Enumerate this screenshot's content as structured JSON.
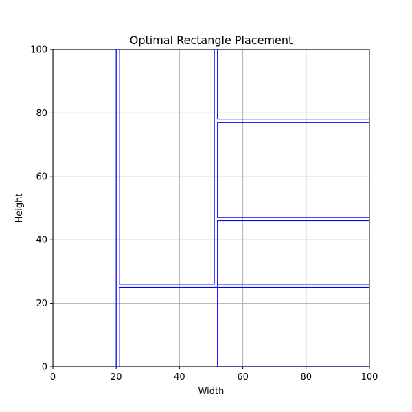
{
  "chart_data": {
    "type": "rectangles",
    "title": "Optimal Rectangle Placement",
    "xlabel": "Width",
    "ylabel": "Height",
    "xlim": [
      0,
      100
    ],
    "ylim": [
      0,
      100
    ],
    "xticks": [
      0,
      20,
      40,
      60,
      80,
      100
    ],
    "yticks": [
      0,
      20,
      40,
      60,
      80,
      100
    ],
    "grid": true,
    "rect_color": "#0000ff",
    "grid_color": "#b0b0b0",
    "rectangles": [
      {
        "x": 0,
        "y": 0,
        "width": 20,
        "height": 100
      },
      {
        "x": 21,
        "y": 0,
        "width": 79,
        "height": 25
      },
      {
        "x": 21,
        "y": 26,
        "width": 30,
        "height": 74
      },
      {
        "x": 52,
        "y": 0,
        "width": 48,
        "height": 26
      },
      {
        "x": 52,
        "y": 26,
        "width": 48,
        "height": 20
      },
      {
        "x": 52,
        "y": 47,
        "width": 48,
        "height": 30
      },
      {
        "x": 52,
        "y": 78,
        "width": 48,
        "height": 22
      }
    ]
  }
}
